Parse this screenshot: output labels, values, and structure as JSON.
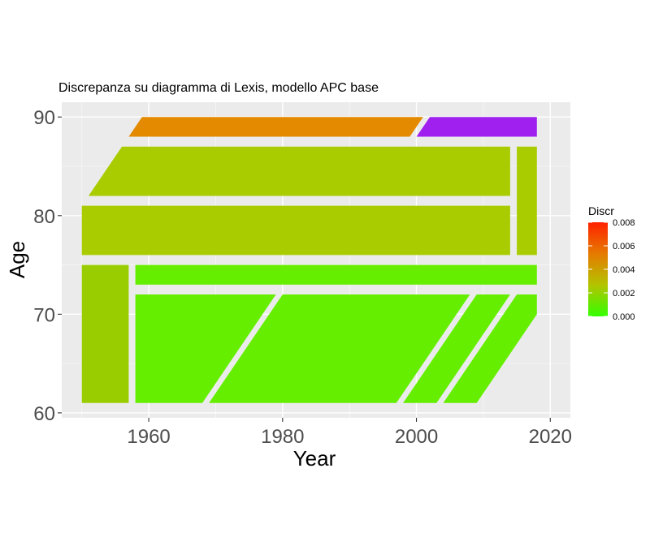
{
  "chart_data": {
    "type": "lexis-diagram",
    "title": "Discrepanza su diagramma di Lexis, modello APC base",
    "xlabel": "Year",
    "ylabel": "Age",
    "xlim": [
      1947,
      2023
    ],
    "ylim": [
      59.5,
      91.5
    ],
    "x_ticks": [
      1960,
      1980,
      2000,
      2020
    ],
    "x_minor_ticks": [
      1950,
      1970,
      1990,
      2010
    ],
    "y_ticks": [
      60,
      70,
      80,
      90
    ],
    "y_minor_ticks": [
      65,
      75,
      85
    ],
    "grid": true,
    "legend": {
      "title": "Discr",
      "position": "right",
      "min": 0,
      "max": 0.008,
      "ticks": [
        "0.000",
        "0.002",
        "0.004",
        "0.006",
        "0.008"
      ],
      "colors": [
        "#33ff00",
        "#b3c400",
        "#e67a00",
        "#ff2200"
      ]
    },
    "regions": [
      {
        "label": "age 61-75, 1950-1957",
        "discr": 0.0018,
        "color": "#9acd00",
        "points": [
          [
            1950,
            61
          ],
          [
            1957,
            61
          ],
          [
            1957,
            75
          ],
          [
            1950,
            75
          ]
        ]
      },
      {
        "label": "age 73-75, 1958-2018",
        "discr": 0.0002,
        "color": "#66ee00",
        "points": [
          [
            1958,
            73
          ],
          [
            2018,
            73
          ],
          [
            2018,
            75
          ],
          [
            1958,
            75
          ]
        ]
      },
      {
        "label": "age 61-72 cohort I",
        "discr": 0.0002,
        "color": "#66ee00",
        "points": [
          [
            1958,
            61
          ],
          [
            1968,
            61
          ],
          [
            1979,
            72
          ],
          [
            1958,
            72
          ]
        ]
      },
      {
        "label": "age 61-72 cohort II",
        "discr": 0.0002,
        "color": "#66ee00",
        "points": [
          [
            1969,
            61
          ],
          [
            1997,
            61
          ],
          [
            2008,
            72
          ],
          [
            1980,
            72
          ]
        ]
      },
      {
        "label": "age 61-72 cohort III",
        "discr": 0.0002,
        "color": "#66ee00",
        "points": [
          [
            1998,
            61
          ],
          [
            2003,
            61
          ],
          [
            2014,
            72
          ],
          [
            2009,
            72
          ]
        ]
      },
      {
        "label": "age 61-72 cohort IV",
        "discr": 0.0002,
        "color": "#66ee00",
        "points": [
          [
            2004,
            61
          ],
          [
            2009,
            61
          ],
          [
            2018,
            70
          ],
          [
            2018,
            72
          ],
          [
            2015,
            72
          ]
        ]
      },
      {
        "label": "age 76-81, 1950-2014",
        "discr": 0.0021,
        "color": "#a8cc00",
        "points": [
          [
            1950,
            76
          ],
          [
            2014,
            76
          ],
          [
            2014,
            81
          ],
          [
            1950,
            81
          ]
        ]
      },
      {
        "label": "age 76-87, 2015-2018",
        "discr": 0.0021,
        "color": "#a8cc00",
        "points": [
          [
            2015,
            76
          ],
          [
            2018,
            76
          ],
          [
            2018,
            87
          ],
          [
            2015,
            87
          ]
        ]
      },
      {
        "label": "age 82-87",
        "discr": 0.0021,
        "color": "#a8cc00",
        "points": [
          [
            1951,
            82
          ],
          [
            2014,
            82
          ],
          [
            2014,
            87
          ],
          [
            1956,
            87
          ]
        ]
      },
      {
        "label": "age 88-90, to 2000",
        "discr": 0.0045,
        "color": "#e38a00",
        "points": [
          [
            1957,
            88
          ],
          [
            1999,
            88
          ],
          [
            2001,
            90
          ],
          [
            1959,
            90
          ]
        ]
      },
      {
        "label": "age 88-90, from 2000",
        "discr": null,
        "color": "#a020f0",
        "points": [
          [
            2000,
            88
          ],
          [
            2018,
            88
          ],
          [
            2018,
            90
          ],
          [
            2002,
            90
          ]
        ]
      }
    ]
  }
}
